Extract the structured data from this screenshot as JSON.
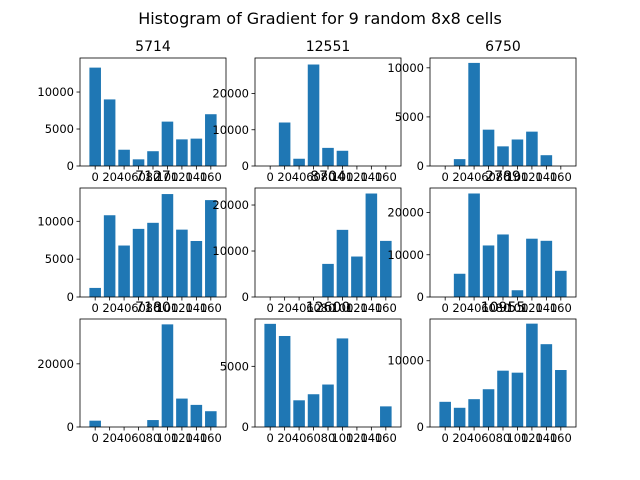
{
  "figure": {
    "suptitle": "Histogram of Gradient for 9 random 8x8 cells",
    "bar_color": "#1f77b4",
    "axes_color": "#000000",
    "background": "#ffffff"
  },
  "chart_data": [
    {
      "type": "bar",
      "title": "5714",
      "categories": [
        "0",
        "20",
        "40",
        "60",
        "80",
        "100",
        "120",
        "140",
        "160"
      ],
      "values": [
        13300,
        9000,
        2200,
        900,
        2000,
        6000,
        3600,
        3700,
        7000
      ],
      "ylim": [
        0,
        14600
      ],
      "yticks": [
        0,
        5000,
        10000
      ],
      "ytick_labels": [
        "0",
        "5000",
        "10000"
      ],
      "grid": false
    },
    {
      "type": "bar",
      "title": "12551",
      "categories": [
        "0",
        "20",
        "40",
        "60",
        "80",
        "100",
        "120",
        "140",
        "160"
      ],
      "values": [
        0,
        12000,
        2000,
        28000,
        5000,
        4200,
        0,
        0,
        0
      ],
      "ylim": [
        0,
        29800
      ],
      "yticks": [
        0,
        10000,
        20000
      ],
      "ytick_labels": [
        "0",
        "10000",
        "20000"
      ],
      "grid": false
    },
    {
      "type": "bar",
      "title": "6750",
      "categories": [
        "0",
        "20",
        "40",
        "60",
        "80",
        "100",
        "120",
        "140",
        "160"
      ],
      "values": [
        0,
        700,
        10500,
        3700,
        2000,
        2700,
        3500,
        1100,
        0
      ],
      "ylim": [
        0,
        11000
      ],
      "yticks": [
        0,
        5000,
        10000
      ],
      "ytick_labels": [
        "0",
        "5000",
        "10000"
      ],
      "grid": false
    },
    {
      "type": "bar",
      "title": "7127",
      "categories": [
        "0",
        "20",
        "40",
        "60",
        "80",
        "100",
        "120",
        "140",
        "160"
      ],
      "values": [
        1200,
        10800,
        6800,
        9000,
        9800,
        13600,
        8900,
        7400,
        12800
      ],
      "ylim": [
        0,
        14400
      ],
      "yticks": [
        0,
        5000,
        10000
      ],
      "ytick_labels": [
        "0",
        "5000",
        "10000"
      ],
      "grid": false
    },
    {
      "type": "bar",
      "title": "8704",
      "categories": [
        "0",
        "20",
        "40",
        "60",
        "80",
        "100",
        "120",
        "140",
        "160"
      ],
      "values": [
        0,
        0,
        0,
        0,
        7200,
        14600,
        8800,
        22500,
        12200
      ],
      "ylim": [
        0,
        23700
      ],
      "yticks": [
        0,
        10000,
        20000
      ],
      "ytick_labels": [
        "0",
        "10000",
        "20000"
      ],
      "grid": false
    },
    {
      "type": "bar",
      "title": "2789",
      "categories": [
        "0",
        "20",
        "40",
        "60",
        "80",
        "100",
        "120",
        "140",
        "160"
      ],
      "values": [
        0,
        5500,
        24500,
        12200,
        14800,
        1600,
        13800,
        13300,
        6200
      ],
      "ylim": [
        0,
        25800
      ],
      "yticks": [
        0,
        10000,
        20000
      ],
      "ytick_labels": [
        "0",
        "10000",
        "20000"
      ],
      "grid": false
    },
    {
      "type": "bar",
      "title": "7180",
      "categories": [
        "0",
        "20",
        "40",
        "60",
        "80",
        "100",
        "120",
        "140",
        "160"
      ],
      "values": [
        2000,
        0,
        0,
        0,
        2200,
        32500,
        9000,
        7000,
        5000
      ],
      "ylim": [
        0,
        34200
      ],
      "yticks": [
        0,
        20000
      ],
      "ytick_labels": [
        "0",
        "20000"
      ],
      "grid": false
    },
    {
      "type": "bar",
      "title": "12600",
      "categories": [
        "0",
        "20",
        "40",
        "60",
        "80",
        "100",
        "120",
        "140",
        "160"
      ],
      "values": [
        8500,
        7500,
        2200,
        2700,
        3500,
        7300,
        0,
        0,
        1700
      ],
      "ylim": [
        0,
        8900
      ],
      "yticks": [
        0,
        5000
      ],
      "ytick_labels": [
        "0",
        "5000"
      ],
      "grid": false
    },
    {
      "type": "bar",
      "title": "10955",
      "categories": [
        "0",
        "20",
        "40",
        "60",
        "80",
        "100",
        "120",
        "140",
        "160"
      ],
      "values": [
        3800,
        2900,
        4200,
        5700,
        8500,
        8200,
        15600,
        12500,
        8600
      ],
      "ylim": [
        0,
        16300
      ],
      "yticks": [
        0,
        10000
      ],
      "ytick_labels": [
        "0",
        "10000"
      ],
      "grid": false
    }
  ]
}
